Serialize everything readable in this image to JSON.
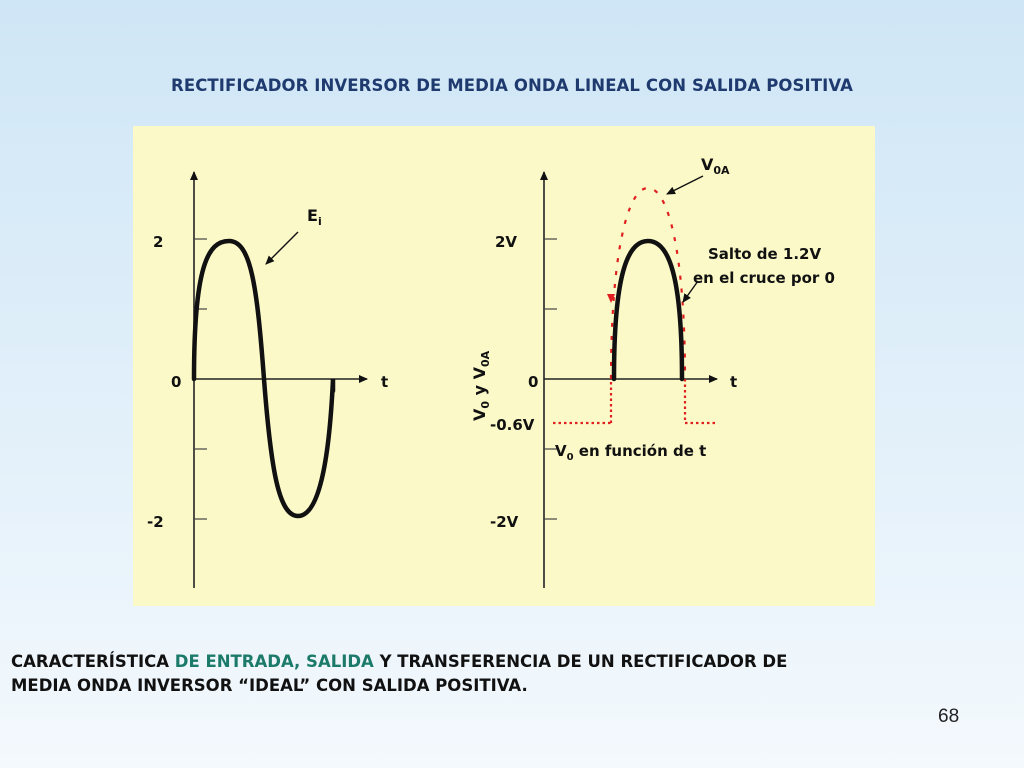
{
  "slide": {
    "title": "RECTIFICADOR INVERSOR DE MEDIA ONDA LINEAL CON SALIDA POSITIVA",
    "page_number": "68"
  },
  "left_graph": {
    "y_top_label": "2",
    "y_zero_label": "0",
    "y_bottom_label": "-2",
    "x_axis_label": "t",
    "curve_label_main": "E",
    "curve_label_sub": "i"
  },
  "right_graph": {
    "y_top_label": "2V",
    "y_zero_label": "0",
    "y_neg_small_label": "-0.6V",
    "y_bottom_label": "-2V",
    "x_axis_label": "t",
    "y_axis_label": {
      "v0_main": "V",
      "v0_sub": "0",
      "connector": " y ",
      "v0a_main": "V",
      "v0a_sub": "0A"
    },
    "v0a_label_main": "V",
    "v0a_label_sub": "0A",
    "jump_note_line1": "Salto de 1.2V",
    "jump_note_line2": "en el cruce por 0",
    "v0_caption_main": "V",
    "v0_caption_sub": "0",
    "v0_caption_rest": " en función de t"
  },
  "caption": {
    "part1": "CARACTERÍSTICA ",
    "part2": "DE ENTRADA, SALIDA",
    "part3": " Y TRANSFERENCIA DE UN RECTIFICADOR DE",
    "line2": "MEDIA ONDA INVERSOR “IDEAL” CON SALIDA POSITIVA."
  },
  "colors": {
    "title": "#1f3a6e",
    "panel_background": "#fbf9c8",
    "curve": "#111111",
    "dotted": "#e02020",
    "caption_highlight": "#1c7a6a"
  }
}
